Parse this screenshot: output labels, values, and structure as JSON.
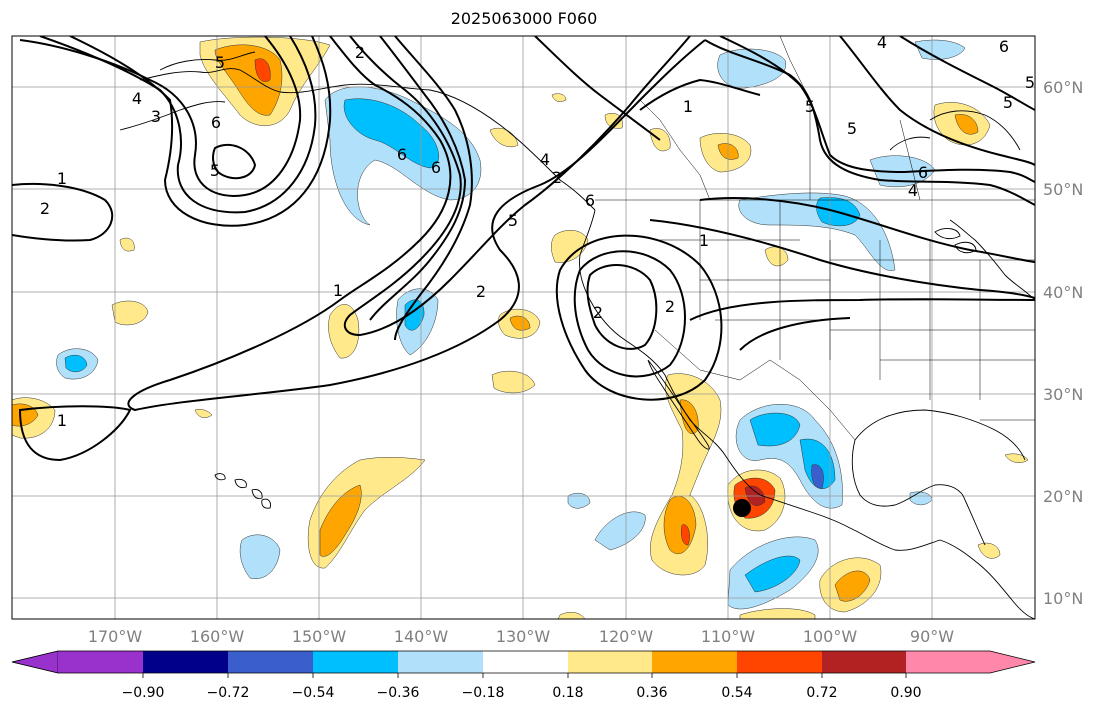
{
  "title": "2025063000 F060",
  "lon_ticks": [
    "170°W",
    "160°W",
    "150°W",
    "140°W",
    "130°W",
    "120°W",
    "110°W",
    "100°W",
    "90°W"
  ],
  "lat_ticks": [
    "10°N",
    "20°N",
    "30°N",
    "40°N",
    "50°N",
    "60°N"
  ],
  "colorbar": {
    "ticks": [
      "−0.90",
      "−0.72",
      "−0.54",
      "−0.36",
      "−0.18",
      "0.18",
      "0.36",
      "0.54",
      "0.72",
      "0.90"
    ],
    "colors": [
      "#9932cc",
      "#00008b",
      "#3a5fcd",
      "#00bfff",
      "#b0e0fa",
      "#ffffff",
      "#ffe98a",
      "#ffa500",
      "#ff4500",
      "#b22222",
      "#ff88aa"
    ]
  },
  "contour_labels": [
    "1",
    "2",
    "3",
    "4",
    "5",
    "6",
    "2",
    "5",
    "1",
    "2",
    "5",
    "6",
    "1",
    "2",
    "5",
    "4",
    "6",
    "5",
    "6",
    "5",
    "4",
    "5",
    "6",
    "2",
    "1",
    "1",
    "6",
    "4",
    "2"
  ],
  "colors": {
    "positive_light": "#ffe98a",
    "positive_mid": "#ffa500",
    "positive_strong": "#ff4500",
    "positive_max": "#b22222",
    "negative_light": "#b0e0fa",
    "negative_mid": "#00bfff",
    "negative_strong": "#3a5fcd"
  },
  "storm_marker": "black-dot"
}
